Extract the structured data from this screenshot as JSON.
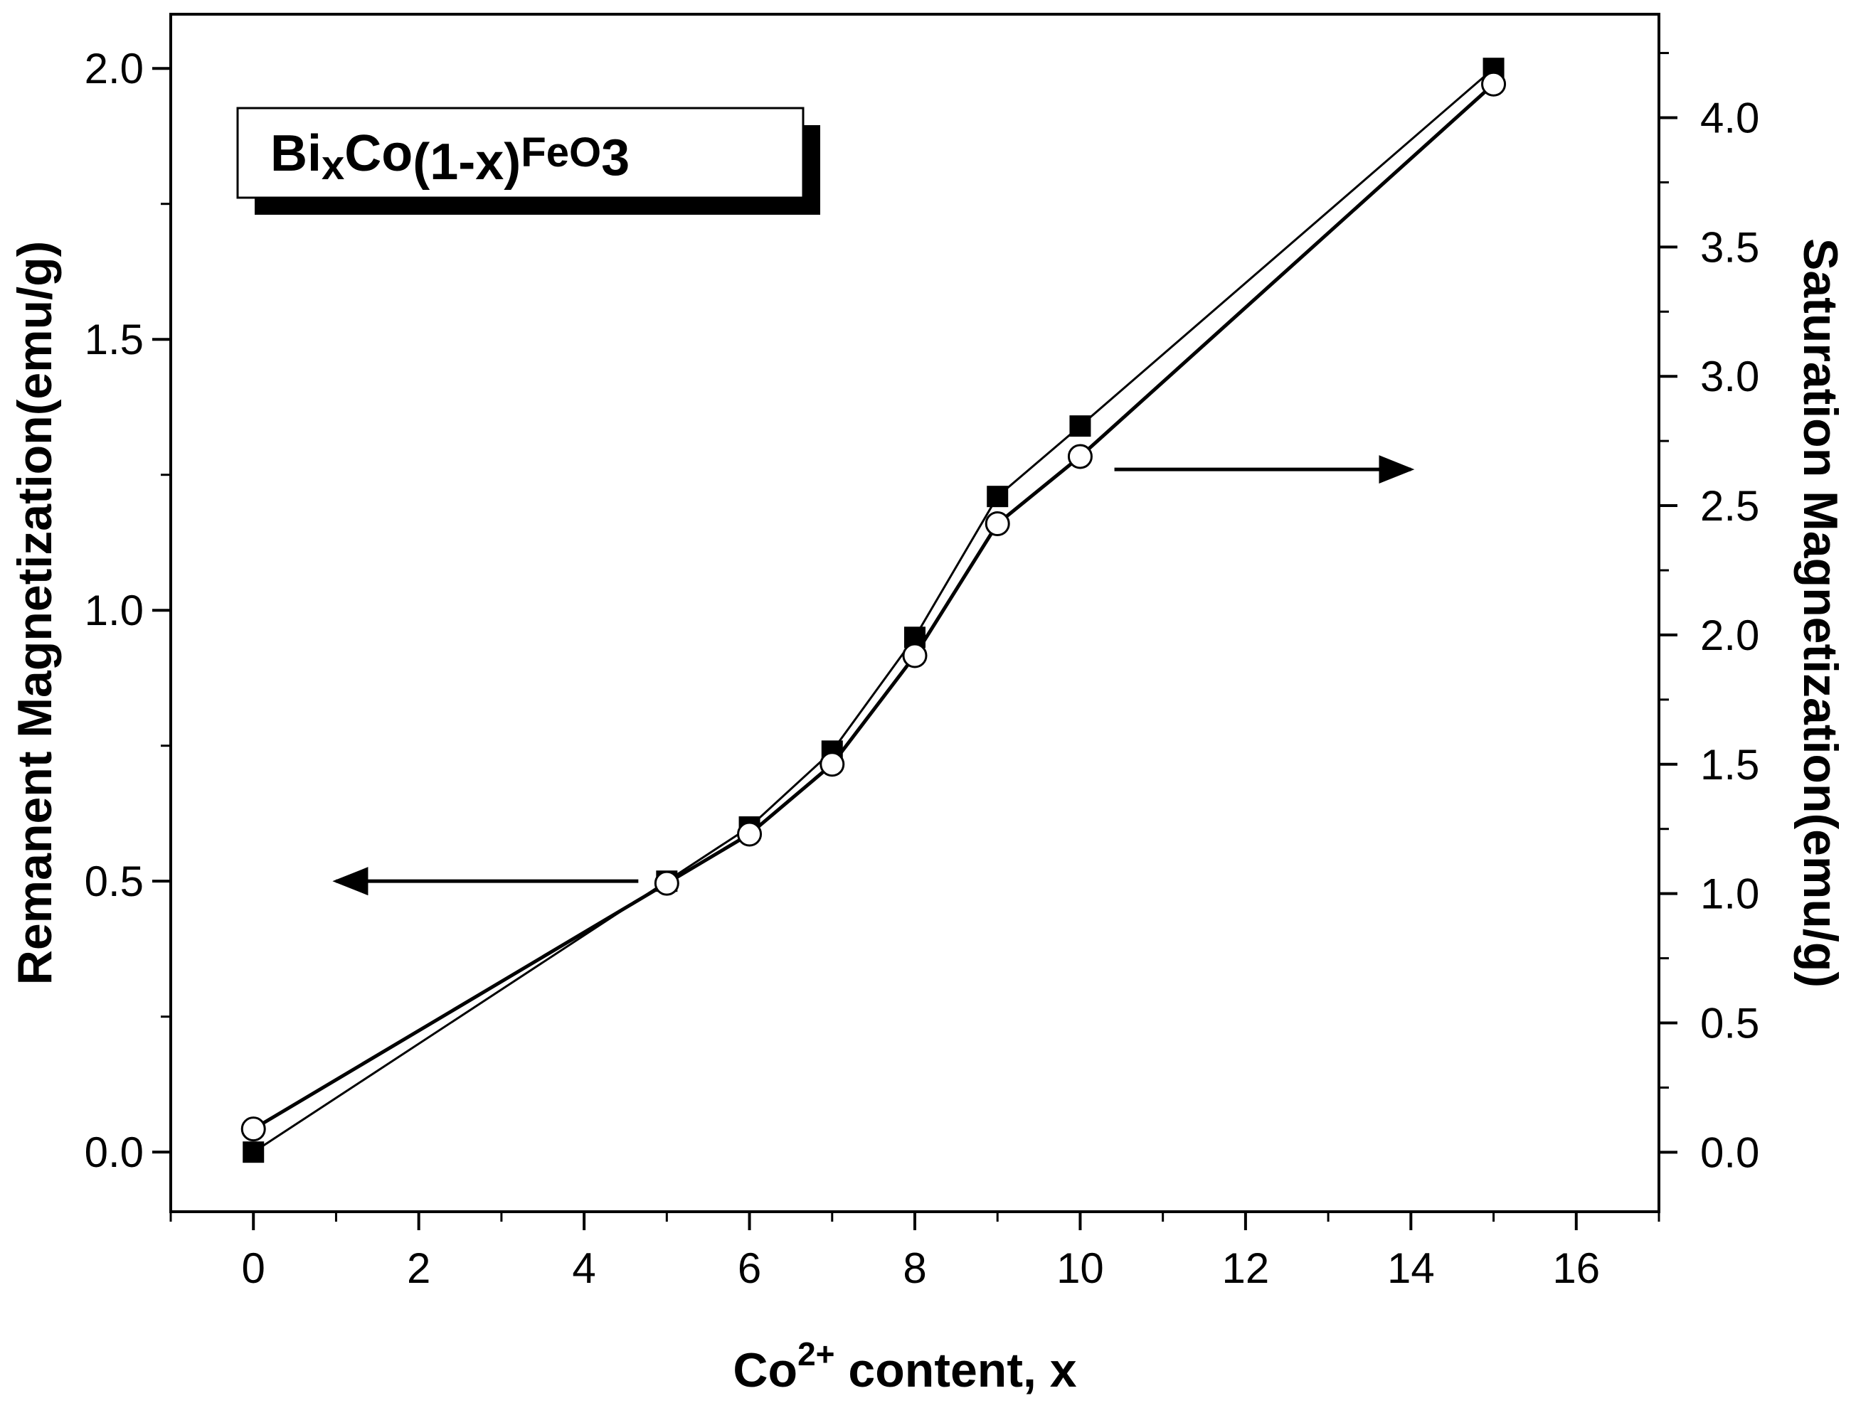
{
  "chart_data": {
    "type": "line",
    "title": "",
    "legend_box": {
      "base1": "Bi",
      "sub1": "x",
      "base2": "Co",
      "sub2": "(1-x)",
      "base3": "FeO",
      "sub3": "3",
      "placement": "top-left"
    },
    "xlabel": {
      "main": "Co",
      "sup": "2+",
      "rest": " content, x"
    },
    "ylabel_left": "Remanent Magnetization(emu/g)",
    "ylabel_right": "Saturation Magnetization(emu/g)",
    "xlim": [
      -1,
      17
    ],
    "ylim_left": [
      -0.11,
      2.1
    ],
    "ylim_right": [
      -0.23,
      4.4
    ],
    "x_ticks": [
      0,
      2,
      4,
      6,
      8,
      10,
      12,
      14,
      16
    ],
    "x_tick_labels": [
      "0",
      "2",
      "4",
      "6",
      "8",
      "10",
      "12",
      "14",
      "16"
    ],
    "y_left_ticks": [
      0.0,
      0.5,
      1.0,
      1.5,
      2.0
    ],
    "y_left_tick_labels": [
      "0.0",
      "0.5",
      "1.0",
      "1.5",
      "2.0"
    ],
    "y_right_ticks": [
      0.0,
      0.5,
      1.0,
      1.5,
      2.0,
      2.5,
      3.0,
      3.5,
      4.0
    ],
    "y_right_tick_labels": [
      "0.0",
      "0.5",
      "1.0",
      "1.5",
      "2.0",
      "2.5",
      "3.0",
      "3.5",
      "4.0"
    ],
    "grid": false,
    "x": [
      0,
      5,
      6,
      7,
      8,
      9,
      10,
      15
    ],
    "series": [
      {
        "axis": "left",
        "marker": "filled-square",
        "color": "#000000",
        "values": [
          0.0,
          0.5,
          0.6,
          0.74,
          0.95,
          1.21,
          1.34,
          2.0
        ]
      },
      {
        "axis": "right",
        "marker": "open-circle",
        "color": "#000000",
        "values": [
          0.09,
          1.04,
          1.23,
          1.5,
          1.92,
          2.43,
          2.69,
          4.13
        ]
      }
    ],
    "annotations": [
      {
        "type": "arrow",
        "direction": "left",
        "points_to_axis": "left",
        "near_x": 5,
        "near_y_left": 0.5
      },
      {
        "type": "arrow",
        "direction": "right",
        "points_to_axis": "right",
        "near_x": 10.5,
        "near_y_left": 1.26
      }
    ]
  }
}
